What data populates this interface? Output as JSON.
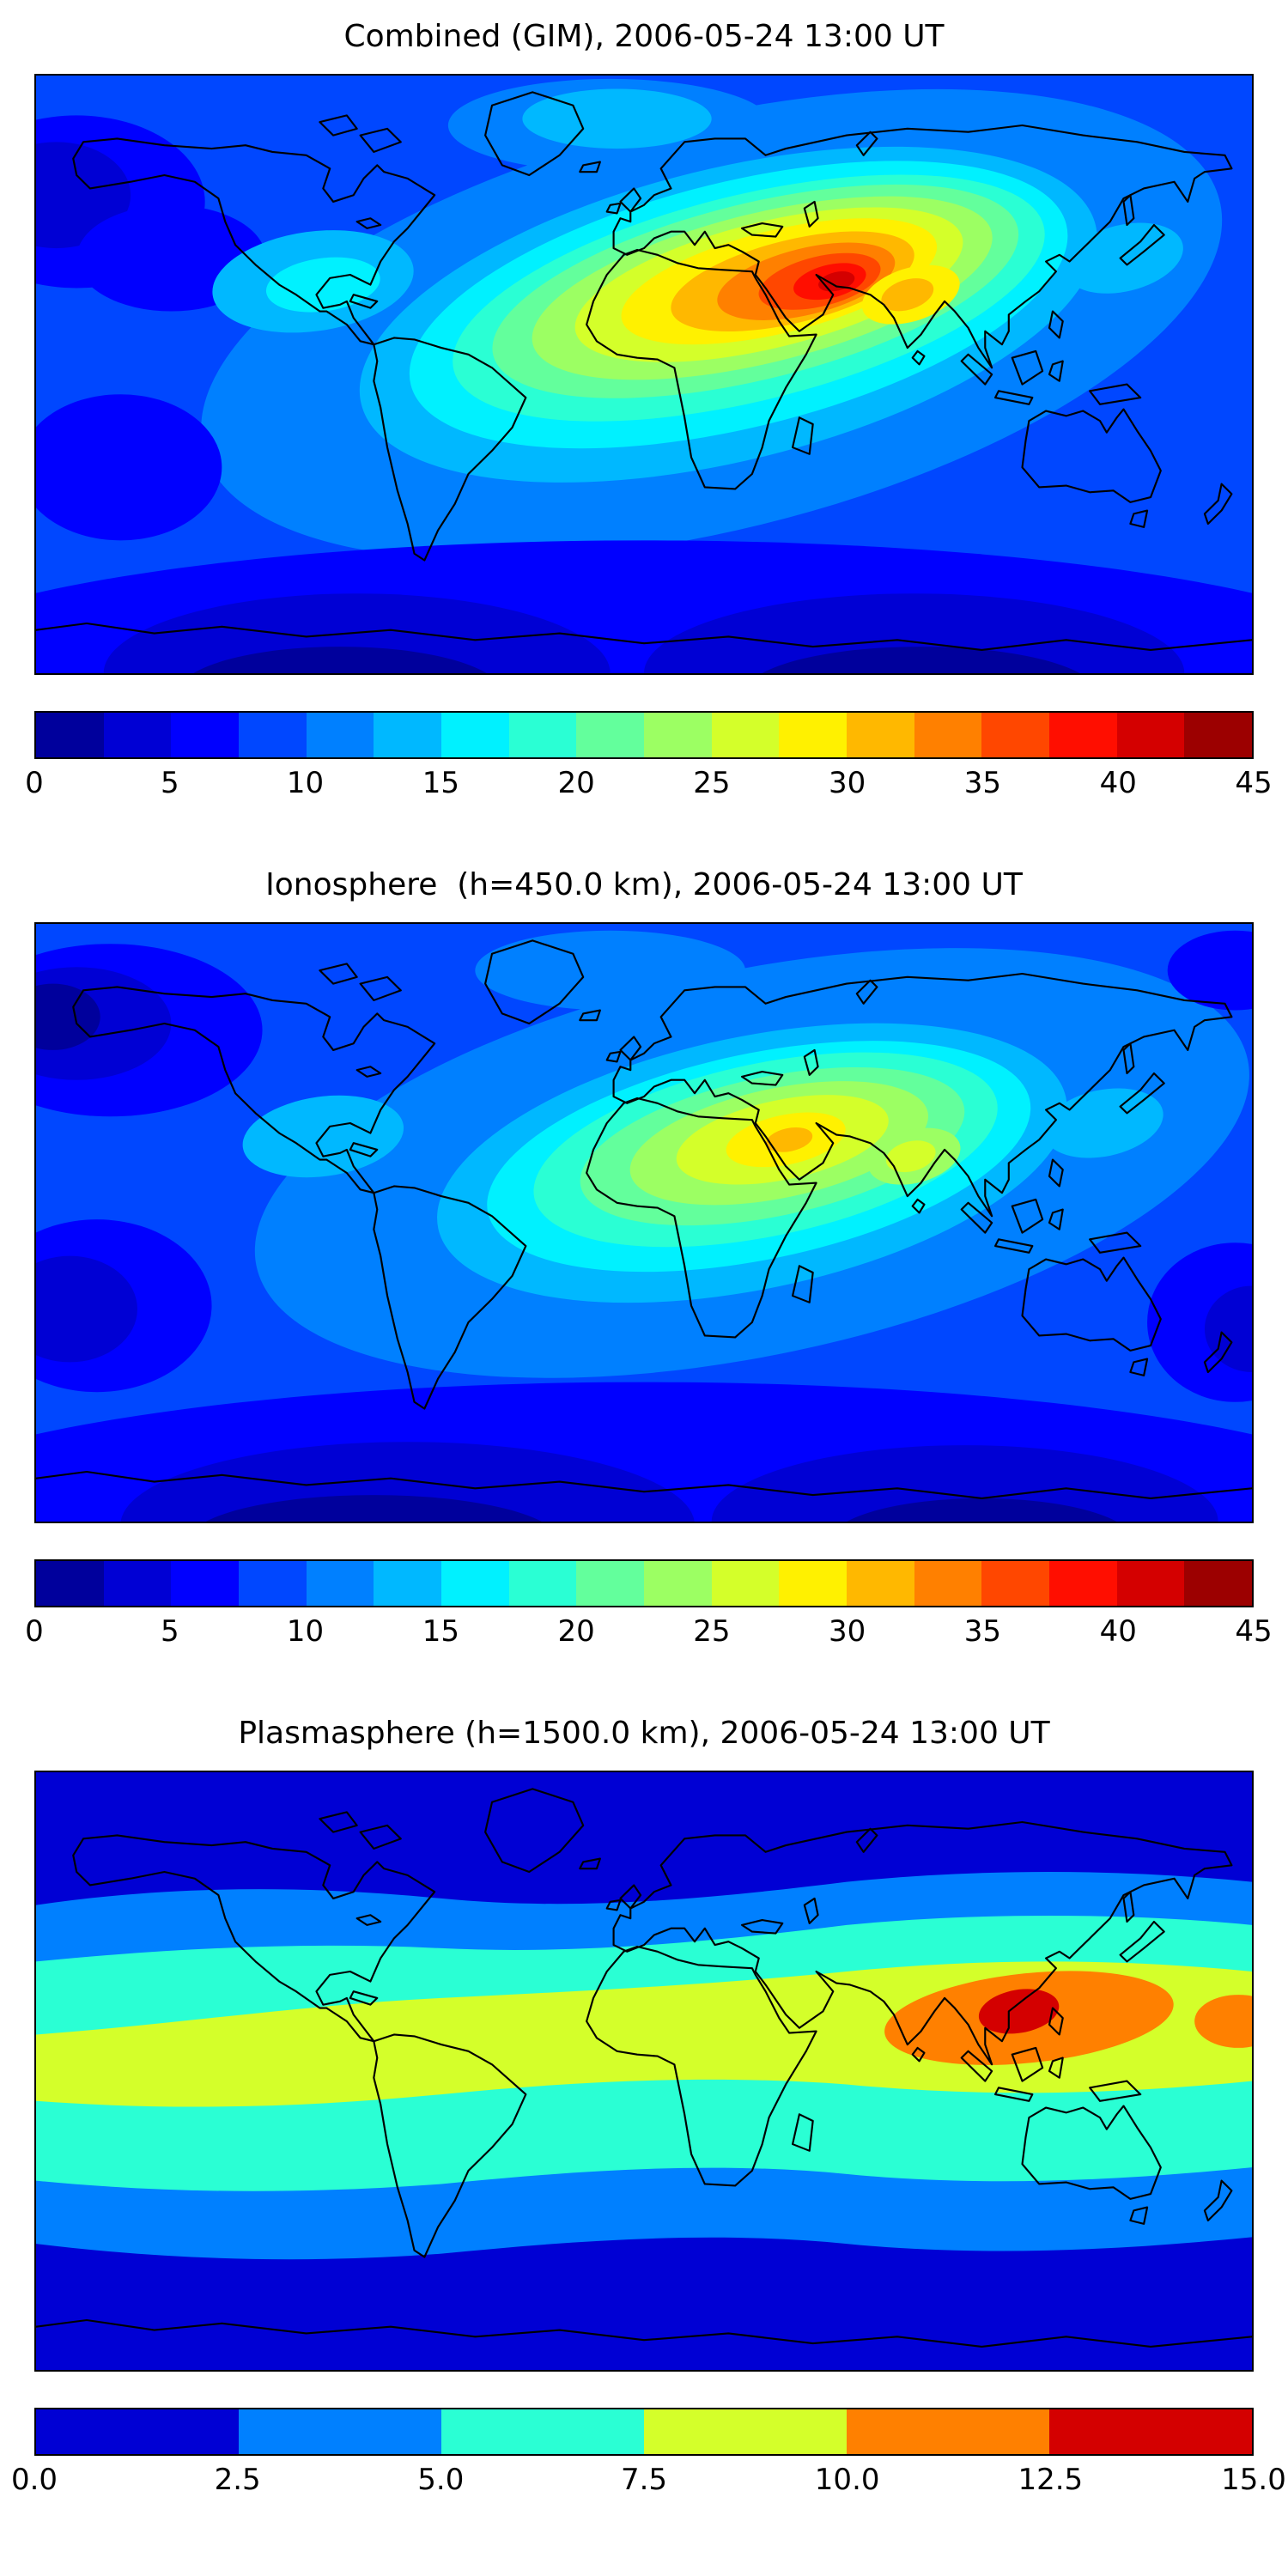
{
  "page": {
    "background": "#ffffff",
    "text_color": "#000000"
  },
  "colormaps": {
    "jet_18": [
      "#00009c",
      "#0000d4",
      "#0000ff",
      "#0047ff",
      "#0080ff",
      "#00b8ff",
      "#00f1ff",
      "#2affd4",
      "#63ff9c",
      "#9cff63",
      "#d4ff2a",
      "#fff100",
      "#ffb800",
      "#ff8000",
      "#ff4700",
      "#ff0e00",
      "#d40000",
      "#9c0000"
    ],
    "jet_6": [
      "#0000d4",
      "#0080ff",
      "#2affd4",
      "#d4ff2a",
      "#ff8000",
      "#d40000"
    ]
  },
  "panels": [
    {
      "id": "combined",
      "title": "Combined (GIM), 2006-05-24 13:00 UT",
      "colorbar": {
        "min": 0,
        "max": 45,
        "ticks": [
          "0",
          "5",
          "10",
          "15",
          "20",
          "25",
          "30",
          "35",
          "40",
          "45"
        ],
        "colors": [
          "#00009c",
          "#0000d4",
          "#0000ff",
          "#0047ff",
          "#0080ff",
          "#00b8ff",
          "#00f1ff",
          "#2affd4",
          "#63ff9c",
          "#9cff63",
          "#d4ff2a",
          "#fff100",
          "#ffb800",
          "#ff8000",
          "#ff4700",
          "#ff0e00",
          "#d40000",
          "#9c0000"
        ]
      }
    },
    {
      "id": "ionosphere",
      "title": "Ionosphere  (h=450.0 km), 2006-05-24 13:00 UT",
      "colorbar": {
        "min": 0,
        "max": 45,
        "ticks": [
          "0",
          "5",
          "10",
          "15",
          "20",
          "25",
          "30",
          "35",
          "40",
          "45"
        ],
        "colors": [
          "#00009c",
          "#0000d4",
          "#0000ff",
          "#0047ff",
          "#0080ff",
          "#00b8ff",
          "#00f1ff",
          "#2affd4",
          "#63ff9c",
          "#9cff63",
          "#d4ff2a",
          "#fff100",
          "#ffb800",
          "#ff8000",
          "#ff4700",
          "#ff0e00",
          "#d40000",
          "#9c0000"
        ]
      }
    },
    {
      "id": "plasmasphere",
      "title": "Plasmasphere (h=1500.0 km), 2006-05-24 13:00 UT",
      "colorbar": {
        "min": 0,
        "max": 15,
        "ticks": [
          "0.0",
          "2.5",
          "5.0",
          "7.5",
          "10.0",
          "12.5",
          "15.0"
        ],
        "colors": [
          "#0000d4",
          "#0080ff",
          "#2affd4",
          "#d4ff2a",
          "#ff8000",
          "#d40000"
        ]
      }
    }
  ],
  "chart_data": [
    {
      "type": "heatmap",
      "title": "Combined (GIM), 2006-05-24 13:00 UT",
      "layout": "filled-contour world map, equirectangular projection, lon -180..180, lat -90..90, black coastlines",
      "colormap": "jet, discrete filled contours",
      "value_range": [
        0,
        45
      ],
      "contour_interval": 2.5,
      "colorbar_ticks": [
        0,
        5,
        10,
        15,
        20,
        25,
        30,
        35,
        40,
        45
      ],
      "colorbar_position": "horizontal, below map",
      "max": {
        "approx_value": 43,
        "approx_lon": 50,
        "approx_lat": 25,
        "region": "Arabian Peninsula / Middle East"
      },
      "secondary_high": {
        "approx_value": 33,
        "region": "North Africa and northern India"
      },
      "min": {
        "approx_value": 2,
        "regions": [
          "southern high-latitude oceans",
          "northwest Pacific"
        ]
      },
      "pattern": "single elongated low-latitude enhancement stretching from eastern South America across the Atlantic, Africa and the Middle East toward East Asia; values fall off toward both poles, darkest in the southern ocean"
    },
    {
      "type": "heatmap",
      "title": "Ionosphere  (h=450.0 km), 2006-05-24 13:00 UT",
      "layout": "filled-contour world map, equirectangular projection, lon -180..180, lat -90..90, black coastlines",
      "colormap": "jet, discrete filled contours",
      "value_range": [
        0,
        45
      ],
      "contour_interval": 2.5,
      "colorbar_ticks": [
        0,
        5,
        10,
        15,
        20,
        25,
        30,
        35,
        40,
        45
      ],
      "colorbar_position": "horizontal, below map",
      "max": {
        "approx_value": 31,
        "approx_lon": 42,
        "approx_lat": 25,
        "region": "northeast Africa / Arabian Peninsula"
      },
      "min": {
        "approx_value": 2,
        "regions": [
          "north Pacific",
          "southeast Pacific",
          "southern high-latitude oceans",
          "west Pacific south of Japan"
        ]
      },
      "pattern": "same enhancement as combined map but weaker and smaller, peaking yellow (~30) instead of red; extensive dark-blue minima over the Pacific and southern ocean"
    },
    {
      "type": "heatmap",
      "title": "Plasmasphere (h=1500.0 km), 2006-05-24 13:00 UT",
      "layout": "filled-contour world map, equirectangular projection, lon -180..180, lat -90..90, black coastlines",
      "colormap": "jet, discrete filled contours (6 levels)",
      "value_range": [
        0,
        15
      ],
      "contour_interval": 2.5,
      "colorbar_ticks": [
        0.0,
        2.5,
        5.0,
        7.5,
        10.0,
        12.5,
        15.0
      ],
      "colorbar_position": "horizontal, below map",
      "max": {
        "approx_value": 14,
        "approx_lon": 112,
        "approx_lat": 18,
        "region": "Southeast Asia / South China Sea"
      },
      "min": {
        "approx_value": 1,
        "regions": [
          "both polar/high-latitude zones"
        ]
      },
      "pattern": "zonal banded structure symmetric about low latitudes: dark blue poleward, azure then turquoise bands, a yellow-green equatorial band spanning all longitudes, and an orange enhancement with a small dark-red core over Southeast Asia"
    }
  ]
}
